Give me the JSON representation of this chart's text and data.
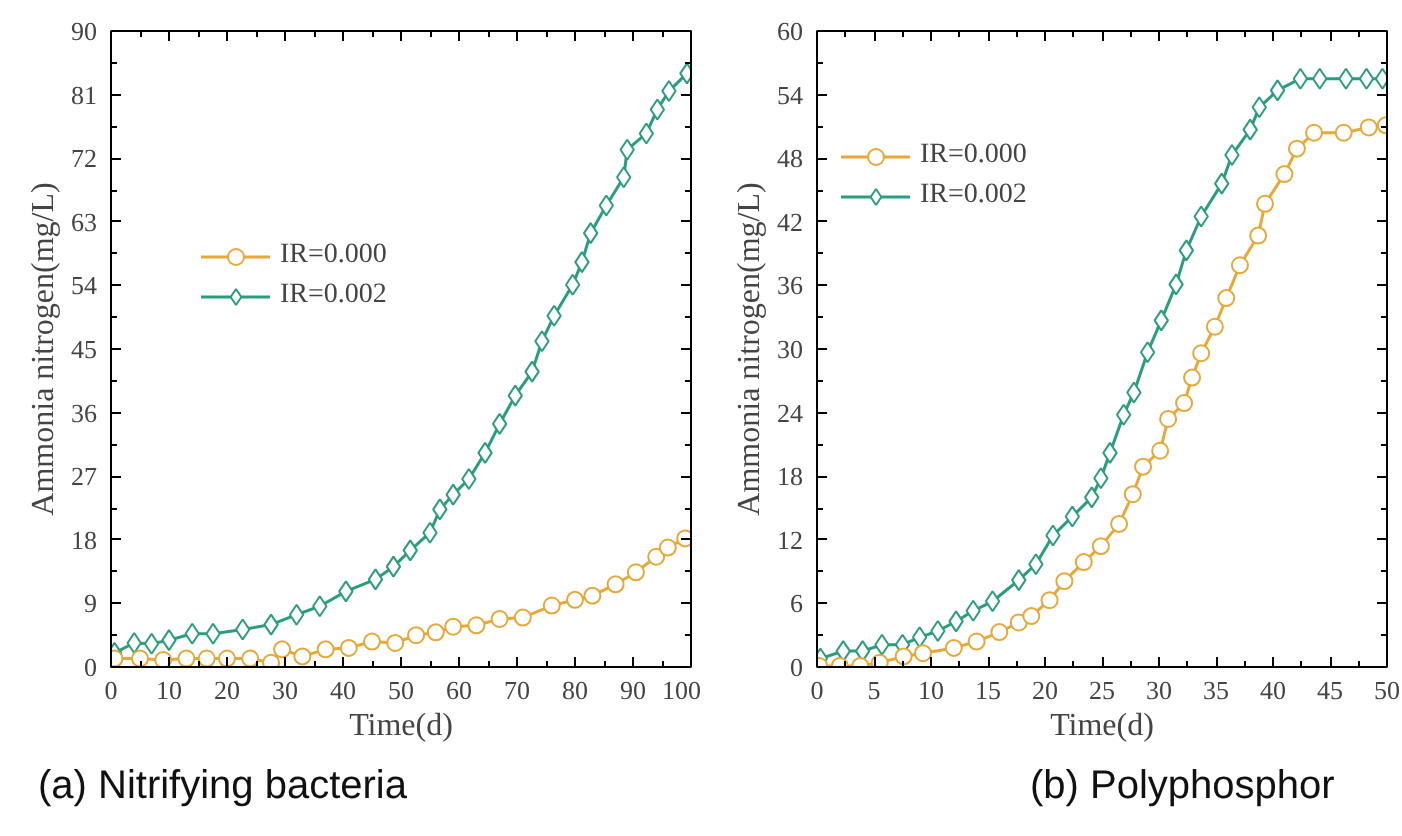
{
  "chart_data": [
    {
      "type": "line",
      "xlabel": "Time(d)",
      "ylabel": "Ammonia nitrogen(mg/L)",
      "annotations": [
        "(a) Nitrifying bacteria"
      ],
      "xlim": [
        0,
        100
      ],
      "ylim": [
        0,
        90
      ],
      "xticks": [
        0,
        10,
        20,
        30,
        40,
        50,
        60,
        70,
        80,
        90,
        100
      ],
      "yticks": [
        0,
        9,
        18,
        27,
        36,
        45,
        54,
        63,
        72,
        81,
        90
      ],
      "grid": false,
      "legend": "left",
      "line_style": "solid",
      "series": [
        {
          "name": "IR=0.000",
          "color": "#e8a838",
          "marker": "circle",
          "x": [
            0.6,
            5,
            9,
            13,
            16.5,
            20,
            24,
            27.6,
            29.5,
            33,
            37,
            41,
            45,
            49,
            52.6,
            56,
            59,
            63,
            67,
            71,
            76,
            80,
            83,
            87,
            90.5,
            94,
            96,
            99
          ],
          "values": [
            1.2,
            1.2,
            1.0,
            1.2,
            1.2,
            1.2,
            1.2,
            0.6,
            2.5,
            1.5,
            2.5,
            2.7,
            3.6,
            3.4,
            4.5,
            4.9,
            5.7,
            5.9,
            6.8,
            7.0,
            8.7,
            9.5,
            10.1,
            11.7,
            13.4,
            15.6,
            16.9,
            18.2
          ]
        },
        {
          "name": "IR=0.002",
          "color": "#2a9d7f",
          "marker": "diamond",
          "x": [
            0.6,
            4,
            7,
            10,
            14,
            17.6,
            22.7,
            27.6,
            32,
            36,
            40.5,
            45.6,
            48.7,
            51.6,
            55,
            56.7,
            59,
            61.7,
            64.5,
            67,
            69.7,
            72.6,
            74.3,
            76.4,
            79.6,
            81.2,
            82.7,
            85.4,
            88.4,
            89,
            92.3,
            94.2,
            96.2,
            99.3
          ],
          "values": [
            2,
            3.4,
            3.3,
            3.8,
            4.7,
            4.7,
            5.3,
            6.0,
            7.4,
            8.6,
            10.7,
            12.4,
            14.2,
            16.5,
            19,
            22.3,
            24.4,
            26.6,
            30.3,
            34.4,
            38.4,
            41.8,
            46.1,
            49.7,
            54.1,
            57.3,
            61.4,
            65.3,
            69.3,
            73.2,
            75.5,
            78.9,
            81.5,
            84
          ]
        }
      ]
    },
    {
      "type": "line",
      "xlabel": "Time(d)",
      "ylabel": "Ammonia nitrogen(mg/L)",
      "annotations": [
        "(b) Polyphosphor"
      ],
      "xlim": [
        0,
        50
      ],
      "ylim": [
        0,
        60
      ],
      "xticks": [
        0,
        5,
        10,
        15,
        20,
        25,
        30,
        35,
        40,
        45,
        50
      ],
      "yticks": [
        0,
        6,
        12,
        18,
        24,
        30,
        36,
        42,
        48,
        54,
        60
      ],
      "grid": false,
      "legend": "top left",
      "line_style": "solid",
      "series": [
        {
          "name": "IR=0.000",
          "color": "#e8a838",
          "marker": "circle",
          "x": [
            0.2,
            2,
            3.8,
            5.5,
            7.6,
            9.3,
            12,
            14,
            16,
            17.7,
            18.8,
            20.4,
            21.7,
            23.4,
            24.9,
            26.5,
            27.7,
            28.6,
            30.1,
            30.8,
            32.2,
            32.9,
            33.7,
            34.9,
            35.9,
            37.1,
            38.7,
            39.3,
            41,
            42.1,
            43.6,
            46.2,
            48.4,
            49.9
          ],
          "values": [
            0.1,
            0.1,
            0.1,
            0.4,
            1.0,
            1.3,
            1.8,
            2.4,
            3.3,
            4.2,
            4.8,
            6.3,
            8.1,
            9.9,
            11.4,
            13.5,
            16.3,
            18.9,
            20.4,
            23.4,
            24.9,
            27.3,
            29.6,
            32.1,
            34.8,
            37.9,
            40.7,
            43.7,
            46.5,
            48.9,
            50.4,
            50.4,
            50.9,
            51.1
          ]
        },
        {
          "name": "IR=0.002",
          "color": "#2a9d7f",
          "marker": "diamond",
          "x": [
            0.3,
            2.3,
            4,
            5.7,
            7.5,
            9,
            10.6,
            12.2,
            13.7,
            15.4,
            17.7,
            19.2,
            20.7,
            22.4,
            24.1,
            24.9,
            25.7,
            26.9,
            27.8,
            29,
            30.2,
            31.5,
            32.4,
            33.7,
            35.5,
            36.4,
            38,
            38.8,
            40.4,
            42.4,
            44.1,
            46.4,
            48.2,
            49.6
          ],
          "values": [
            0.8,
            1.5,
            1.5,
            2.1,
            2.1,
            2.8,
            3.4,
            4.3,
            5.3,
            6.2,
            8.2,
            9.7,
            12.4,
            14.2,
            16.0,
            17.8,
            20.2,
            23.8,
            25.9,
            29.7,
            32.7,
            36.1,
            39.3,
            42.5,
            45.6,
            48.3,
            50.7,
            52.8,
            54.4,
            55.5,
            55.5,
            55.5,
            55.5,
            55.5
          ]
        }
      ]
    }
  ]
}
